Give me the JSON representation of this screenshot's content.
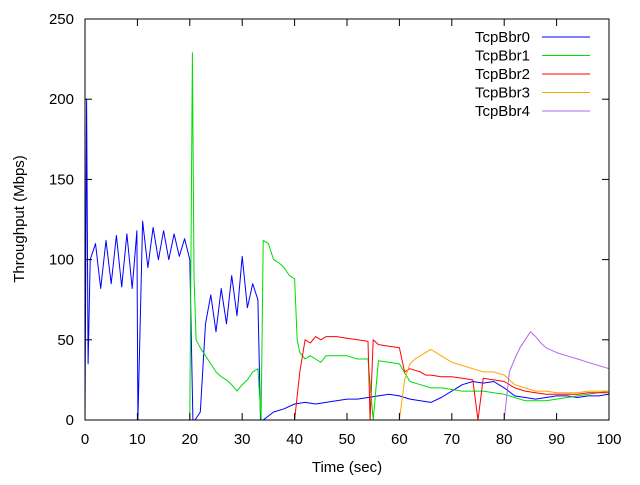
{
  "chart_data": {
    "type": "line",
    "title": "",
    "xlabel": "Time (sec)",
    "ylabel": "Throughput (Mbps)",
    "xlim": [
      0,
      100
    ],
    "ylim": [
      0,
      250
    ],
    "xticks": [
      0,
      10,
      20,
      30,
      40,
      50,
      60,
      70,
      80,
      90,
      100
    ],
    "yticks": [
      0,
      50,
      100,
      150,
      200,
      250
    ],
    "grid": false,
    "legend_position": "top-right",
    "series": [
      {
        "name": "TcpBbr0",
        "color": "#0000ff",
        "x": [
          0,
          0.3,
          0.6,
          1,
          2,
          3,
          4,
          5,
          6,
          7,
          8,
          9,
          9.9,
          10.1,
          11,
          12,
          13,
          14,
          15,
          16,
          17,
          18,
          19,
          20,
          20.6,
          21,
          22,
          23,
          24,
          25,
          26,
          27,
          28,
          29,
          30,
          31,
          32,
          33,
          33.5,
          34,
          36,
          38,
          40,
          42,
          44,
          46,
          48,
          50,
          52,
          54,
          56,
          58,
          60,
          62,
          64,
          66,
          68,
          70,
          72,
          74,
          76,
          78,
          80,
          82,
          84,
          86,
          88,
          90,
          92,
          94,
          96,
          98,
          100
        ],
        "values": [
          0,
          200,
          35,
          100,
          110,
          82,
          112,
          85,
          115,
          83,
          116,
          82,
          118,
          0,
          124,
          95,
          120,
          100,
          118,
          100,
          116,
          102,
          113,
          100,
          0,
          0,
          5,
          60,
          78,
          55,
          82,
          60,
          90,
          65,
          102,
          70,
          85,
          75,
          0,
          0,
          5,
          7,
          10,
          11,
          10,
          11,
          12,
          13,
          13,
          14,
          15,
          16,
          15,
          13,
          12,
          11,
          14,
          18,
          22,
          24,
          23,
          24,
          20,
          15,
          14,
          13,
          14,
          15,
          15,
          14,
          15,
          15,
          16
        ]
      },
      {
        "name": "TcpBbr1",
        "color": "#00dd00",
        "x": [
          20,
          20.5,
          20.8,
          21.2,
          22,
          23,
          24,
          25,
          26,
          27,
          28,
          29,
          30,
          31,
          32,
          33,
          33.6,
          34,
          35,
          36,
          37,
          38,
          39,
          40,
          40.5,
          41,
          42,
          43,
          44,
          45,
          46,
          48,
          50,
          52,
          54,
          55,
          56,
          58,
          60,
          62,
          64,
          66,
          68,
          70,
          72,
          74,
          76,
          78,
          80,
          82,
          84,
          86,
          88,
          90,
          92,
          94,
          96,
          98,
          100
        ],
        "values": [
          0,
          229,
          90,
          50,
          45,
          40,
          35,
          30,
          27,
          25,
          22,
          18,
          22,
          25,
          30,
          32,
          0,
          112,
          110,
          100,
          98,
          95,
          90,
          88,
          50,
          42,
          38,
          40,
          38,
          36,
          40,
          40,
          40,
          38,
          38,
          0,
          37,
          36,
          35,
          24,
          22,
          20,
          20,
          19,
          18,
          18,
          18,
          17,
          16,
          14,
          12,
          12,
          12,
          13,
          14,
          15,
          16,
          17,
          18
        ]
      },
      {
        "name": "TcpBbr2",
        "color": "#ff0000",
        "x": [
          40,
          41,
          42,
          43,
          44,
          45,
          46,
          48,
          50,
          52,
          54,
          54.4,
          55,
          56,
          58,
          60,
          61,
          62,
          63,
          64,
          65,
          66,
          68,
          70,
          72,
          74,
          75,
          76,
          78,
          80,
          82,
          84,
          86,
          88,
          90,
          92,
          94,
          96,
          98,
          100
        ],
        "values": [
          0,
          30,
          50,
          48,
          52,
          50,
          52,
          52,
          51,
          50,
          49,
          0,
          50,
          47,
          46,
          45,
          30,
          32,
          31,
          30,
          28,
          28,
          27,
          27,
          26,
          25,
          0,
          26,
          25,
          24,
          20,
          18,
          17,
          16,
          16,
          16,
          16,
          17,
          17,
          17
        ]
      },
      {
        "name": "TcpBbr3",
        "color": "#ffa500",
        "x": [
          60,
          61,
          62,
          63,
          64,
          65,
          66,
          68,
          70,
          72,
          74,
          76,
          78,
          80,
          82,
          84,
          86,
          88,
          90,
          92,
          94,
          96,
          98,
          100
        ],
        "values": [
          0,
          25,
          35,
          38,
          40,
          42,
          44,
          40,
          36,
          34,
          32,
          30,
          30,
          28,
          22,
          20,
          18,
          18,
          17,
          17,
          17,
          18,
          18,
          18
        ]
      },
      {
        "name": "TcpBbr4",
        "color": "#b866ee",
        "x": [
          80,
          81,
          82,
          83,
          84,
          85,
          86,
          87,
          88,
          90,
          92,
          94,
          96,
          98,
          100
        ],
        "values": [
          0,
          30,
          38,
          45,
          50,
          55,
          52,
          48,
          45,
          42,
          40,
          38,
          36,
          34,
          32
        ]
      }
    ]
  }
}
